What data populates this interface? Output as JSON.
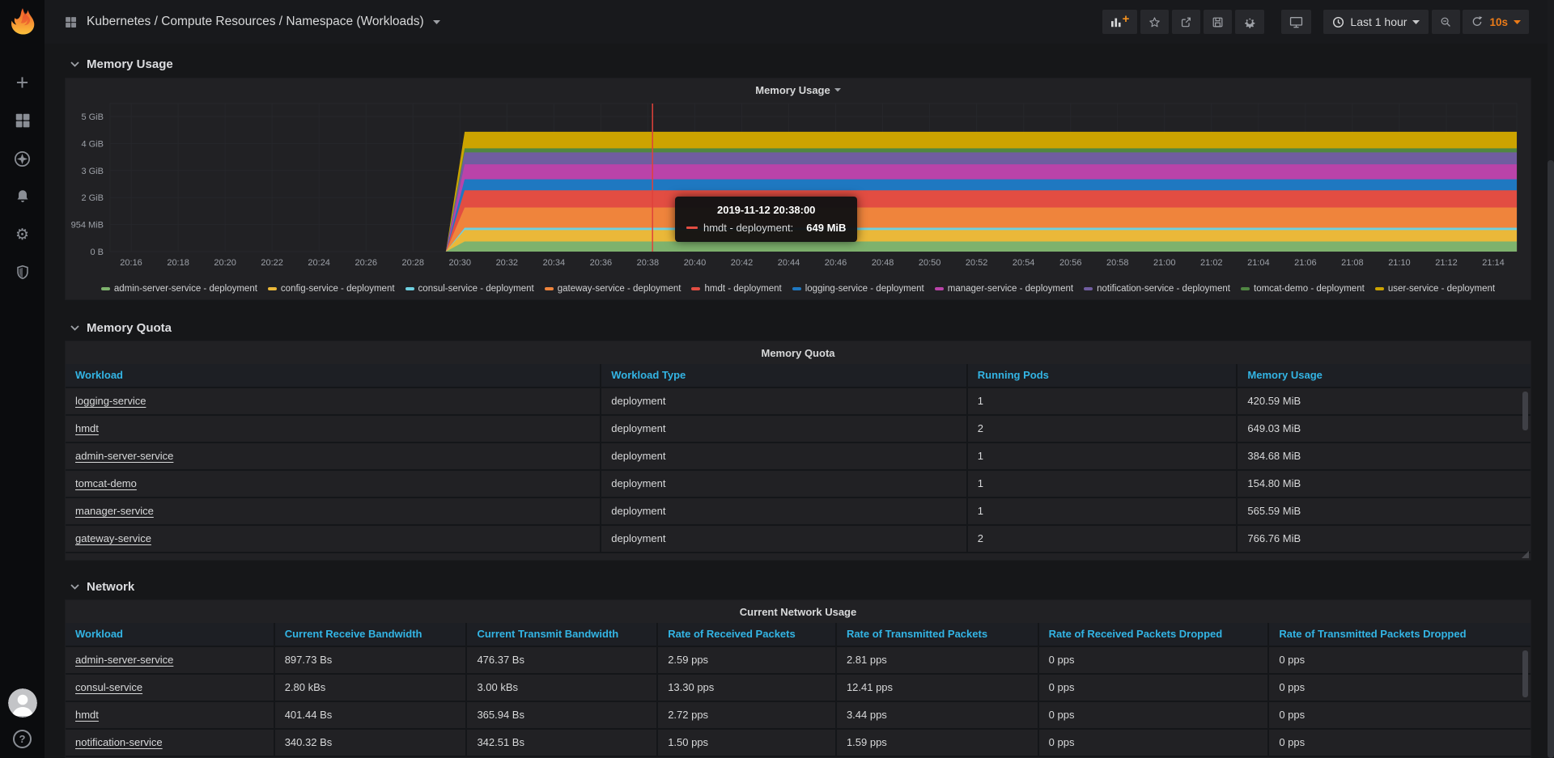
{
  "navbar": {
    "dashboard_title": "Kubernetes / Compute Resources / Namespace (Workloads)",
    "time_range_label": "Last 1 hour",
    "refresh_interval_label": "10s"
  },
  "sections": {
    "memory_usage": "Memory Usage",
    "memory_quota": "Memory Quota",
    "network": "Network"
  },
  "colors": {
    "page_bg": "#161719",
    "panel_bg": "#212124",
    "table_header_text": "#33b5e5",
    "accent_orange": "#eb7b18",
    "crosshair_red": "#e0413a"
  },
  "chart_data": {
    "type": "area",
    "stacked": true,
    "title": "Memory Usage",
    "legend_position": "bottom",
    "x_ticks": [
      "20:16",
      "20:18",
      "20:20",
      "20:22",
      "20:24",
      "20:26",
      "20:28",
      "20:30",
      "20:32",
      "20:34",
      "20:36",
      "20:38",
      "20:40",
      "20:42",
      "20:44",
      "20:46",
      "20:48",
      "20:50",
      "20:52",
      "20:54",
      "20:56",
      "20:58",
      "21:00",
      "21:02",
      "21:04",
      "21:06",
      "21:08",
      "21:10",
      "21:12",
      "21:14"
    ],
    "y_ticks": [
      "0 B",
      "954 MiB",
      "2 GiB",
      "3 GiB",
      "4 GiB",
      "5 GiB"
    ],
    "y_max_mib": 5120,
    "x_range": [
      "20:15",
      "21:15"
    ],
    "rise_start_min_after_2016": 13.4,
    "rise_end_min_after_2016": 14.2,
    "crosshair": {
      "time": "20:38:00",
      "min_after_2016": 22.2,
      "color": "#e0413a"
    },
    "series": [
      {
        "name": "admin-server-service - deployment",
        "color": "#7EB26D",
        "steady_value_mib": 385
      },
      {
        "name": "config-service - deployment",
        "color": "#EAB839",
        "steady_value_mib": 430
      },
      {
        "name": "consul-service - deployment",
        "color": "#6ED0E0",
        "steady_value_mib": 90
      },
      {
        "name": "gateway-service - deployment",
        "color": "#EF843C",
        "steady_value_mib": 767
      },
      {
        "name": "hmdt - deployment",
        "color": "#E24D42",
        "steady_value_mib": 649
      },
      {
        "name": "logging-service - deployment",
        "color": "#1F78C1",
        "steady_value_mib": 421
      },
      {
        "name": "manager-service - deployment",
        "color": "#BA43A9",
        "steady_value_mib": 566
      },
      {
        "name": "notification-service - deployment",
        "color": "#705DA0",
        "steady_value_mib": 450
      },
      {
        "name": "tomcat-demo - deployment",
        "color": "#508642",
        "steady_value_mib": 155
      },
      {
        "name": "user-service - deployment",
        "color": "#CCA300",
        "steady_value_mib": 630
      }
    ],
    "tooltip": {
      "timestamp": "2019-11-12 20:38:00",
      "series_label": "hmdt - deployment:",
      "value": "649 MiB",
      "swatch_color": "#E24D42"
    }
  },
  "memory_quota_table": {
    "title": "Memory Quota",
    "columns": [
      "Workload",
      "Workload Type",
      "Running Pods",
      "Memory Usage"
    ],
    "rows": [
      [
        "logging-service",
        "deployment",
        "1",
        "420.59 MiB"
      ],
      [
        "hmdt",
        "deployment",
        "2",
        "649.03 MiB"
      ],
      [
        "admin-server-service",
        "deployment",
        "1",
        "384.68 MiB"
      ],
      [
        "tomcat-demo",
        "deployment",
        "1",
        "154.80 MiB"
      ],
      [
        "manager-service",
        "deployment",
        "1",
        "565.59 MiB"
      ],
      [
        "gateway-service",
        "deployment",
        "2",
        "766.76 MiB"
      ]
    ]
  },
  "network_table": {
    "title": "Current Network Usage",
    "columns": [
      "Workload",
      "Current Receive Bandwidth",
      "Current Transmit Bandwidth",
      "Rate of Received Packets",
      "Rate of Transmitted Packets",
      "Rate of Received Packets Dropped",
      "Rate of Transmitted Packets Dropped"
    ],
    "rows": [
      [
        "admin-server-service",
        "897.73 Bs",
        "476.37 Bs",
        "2.59 pps",
        "2.81 pps",
        "0 pps",
        "0 pps"
      ],
      [
        "consul-service",
        "2.80 kBs",
        "3.00 kBs",
        "13.30 pps",
        "12.41 pps",
        "0 pps",
        "0 pps"
      ],
      [
        "hmdt",
        "401.44 Bs",
        "365.94 Bs",
        "2.72 pps",
        "3.44 pps",
        "0 pps",
        "0 pps"
      ],
      [
        "notification-service",
        "340.32 Bs",
        "342.51 Bs",
        "1.50 pps",
        "1.59 pps",
        "0 pps",
        "0 pps"
      ]
    ]
  }
}
